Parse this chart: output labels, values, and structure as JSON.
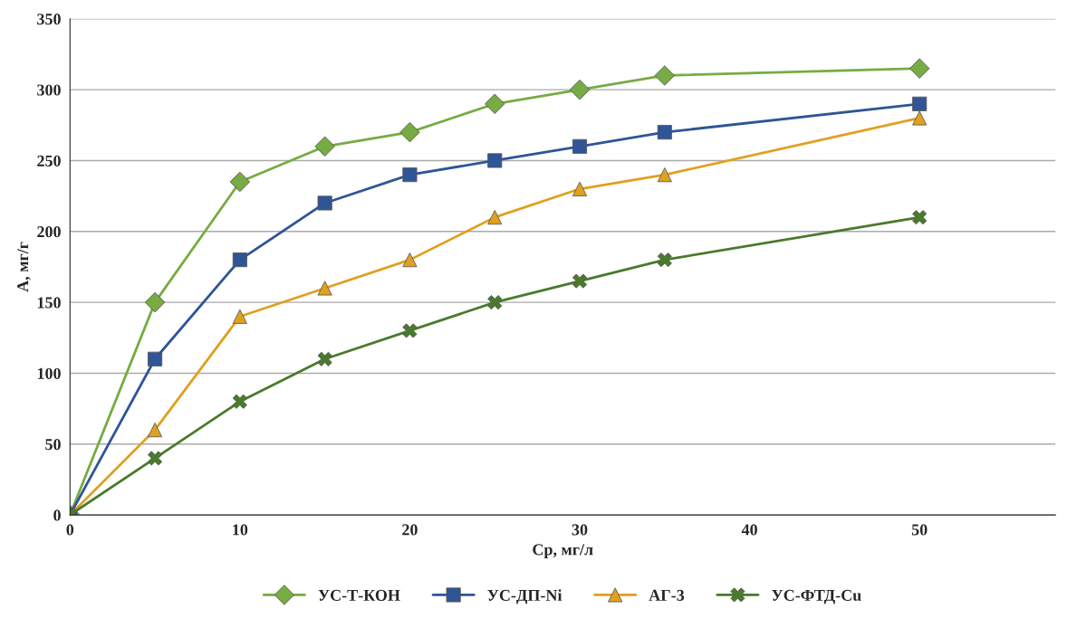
{
  "chart_data": {
    "type": "line",
    "xlabel": "Ср, мг/л",
    "ylabel": "А, мг/г",
    "x": [
      0,
      5,
      10,
      15,
      20,
      25,
      30,
      35,
      50
    ],
    "xlim": [
      0,
      58
    ],
    "xticks": [
      0,
      10,
      20,
      30,
      40,
      50
    ],
    "ylim": [
      0,
      350
    ],
    "yticks": [
      0,
      50,
      100,
      150,
      200,
      250,
      300,
      350
    ],
    "grid": "y",
    "legend": "bottom",
    "line_style": "solid",
    "series": [
      {
        "name": "УС-Т-КОН",
        "color": "#77ab43",
        "marker": "diamond",
        "values": [
          0,
          150,
          235,
          260,
          270,
          290,
          300,
          310,
          315
        ]
      },
      {
        "name": "УС-ДП-Ni",
        "color": "#2f5597",
        "marker": "square",
        "values": [
          0,
          110,
          180,
          220,
          240,
          250,
          260,
          270,
          290
        ]
      },
      {
        "name": "АГ-3",
        "color": "#e0a020",
        "marker": "triangle",
        "values": [
          0,
          60,
          140,
          160,
          180,
          210,
          230,
          240,
          280
        ]
      },
      {
        "name": "УС-ФТД-Cu",
        "color": "#4a7a2c",
        "marker": "cross",
        "values": [
          0,
          40,
          80,
          110,
          130,
          150,
          165,
          180,
          210
        ]
      }
    ]
  }
}
